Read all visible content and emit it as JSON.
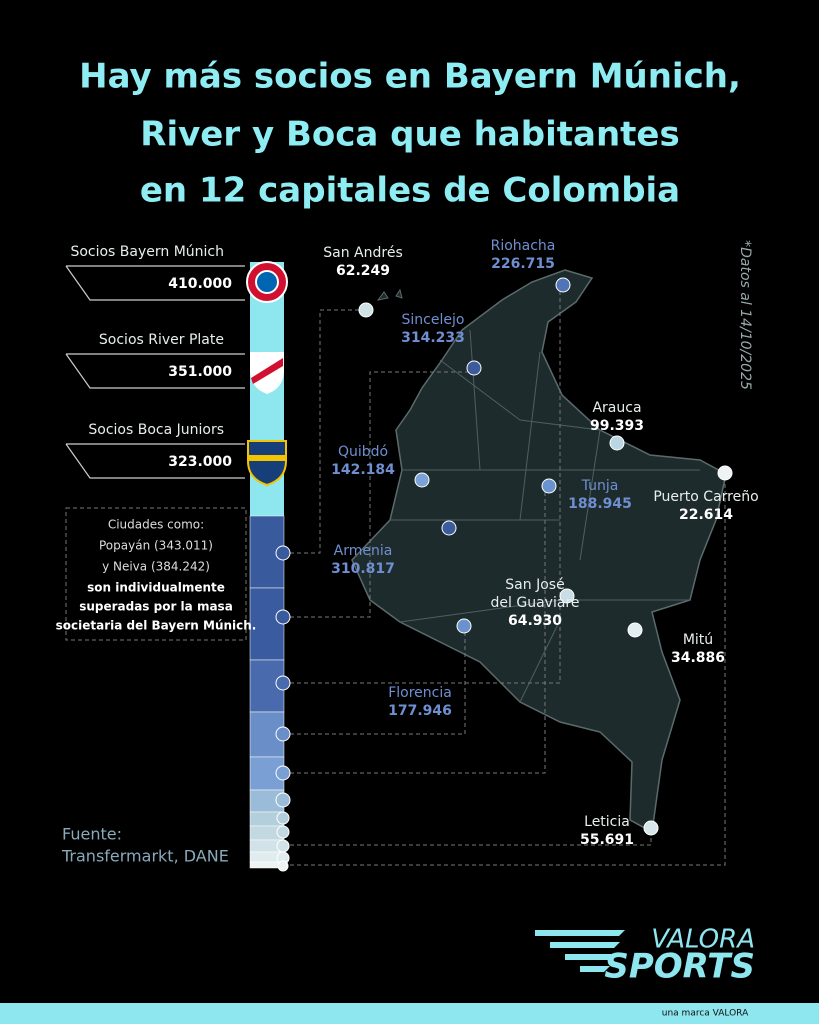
{
  "header": {
    "title": [
      "Hay más socios en Bayern Múnich,",
      "River y Boca que habitantes",
      "en 12 capitales de Colombia"
    ]
  },
  "clubs": [
    {
      "label": "Socios Bayern Múnich",
      "value": "410.000"
    },
    {
      "label": "Socios River Plate",
      "value": "351.000"
    },
    {
      "label": "Socios Boca Juniors",
      "value": "323.000"
    }
  ],
  "note": {
    "lines": [
      "Ciudades como:",
      "Popayán (343.011)",
      "y Neiva (384.242)"
    ],
    "bold_lines": [
      "son individualmente",
      "superadas por la masa",
      "societaria del Bayern Múnich."
    ]
  },
  "cities": [
    {
      "name": [
        "San Andrés"
      ],
      "population": "62.249",
      "color": "#cfe3e6"
    },
    {
      "name": [
        "Riohacha"
      ],
      "population": "226.715",
      "color": "#4f74b8"
    },
    {
      "name": [
        "Sincelejo"
      ],
      "population": "314.233",
      "color": "#3c5a9c"
    },
    {
      "name": [
        "Arauca"
      ],
      "population": "99.393",
      "color": "#b9d6e2"
    },
    {
      "name": [
        "Quibdó"
      ],
      "population": "142.184",
      "color": "#7aa2d6"
    },
    {
      "name": [
        "Tunja"
      ],
      "population": "188.945",
      "color": "#6a92cc"
    },
    {
      "name": [
        "Puerto Carreño"
      ],
      "population": "22.614",
      "color": "#eef4f4"
    },
    {
      "name": [
        "Armenia"
      ],
      "population": "310.817",
      "color": "#3c5a9c"
    },
    {
      "name": [
        "San José",
        "del Guaviare"
      ],
      "population": "64.930",
      "color": "#c8dde6"
    },
    {
      "name": [
        "Mitú"
      ],
      "population": "34.886",
      "color": "#e3eef0"
    },
    {
      "name": [
        "Florencia"
      ],
      "population": "177.946",
      "color": "#6a92cc"
    },
    {
      "name": [
        "Leticia"
      ],
      "population": "55.691",
      "color": "#d6e6ea"
    }
  ],
  "date_note": "*Datos al 14/10/2025",
  "source": [
    "Fuente:",
    "Transfermarkt, DANE"
  ],
  "brand": {
    "line1": "VALORA",
    "line2": "SPORTS",
    "footer": "una marca VALORA"
  }
}
